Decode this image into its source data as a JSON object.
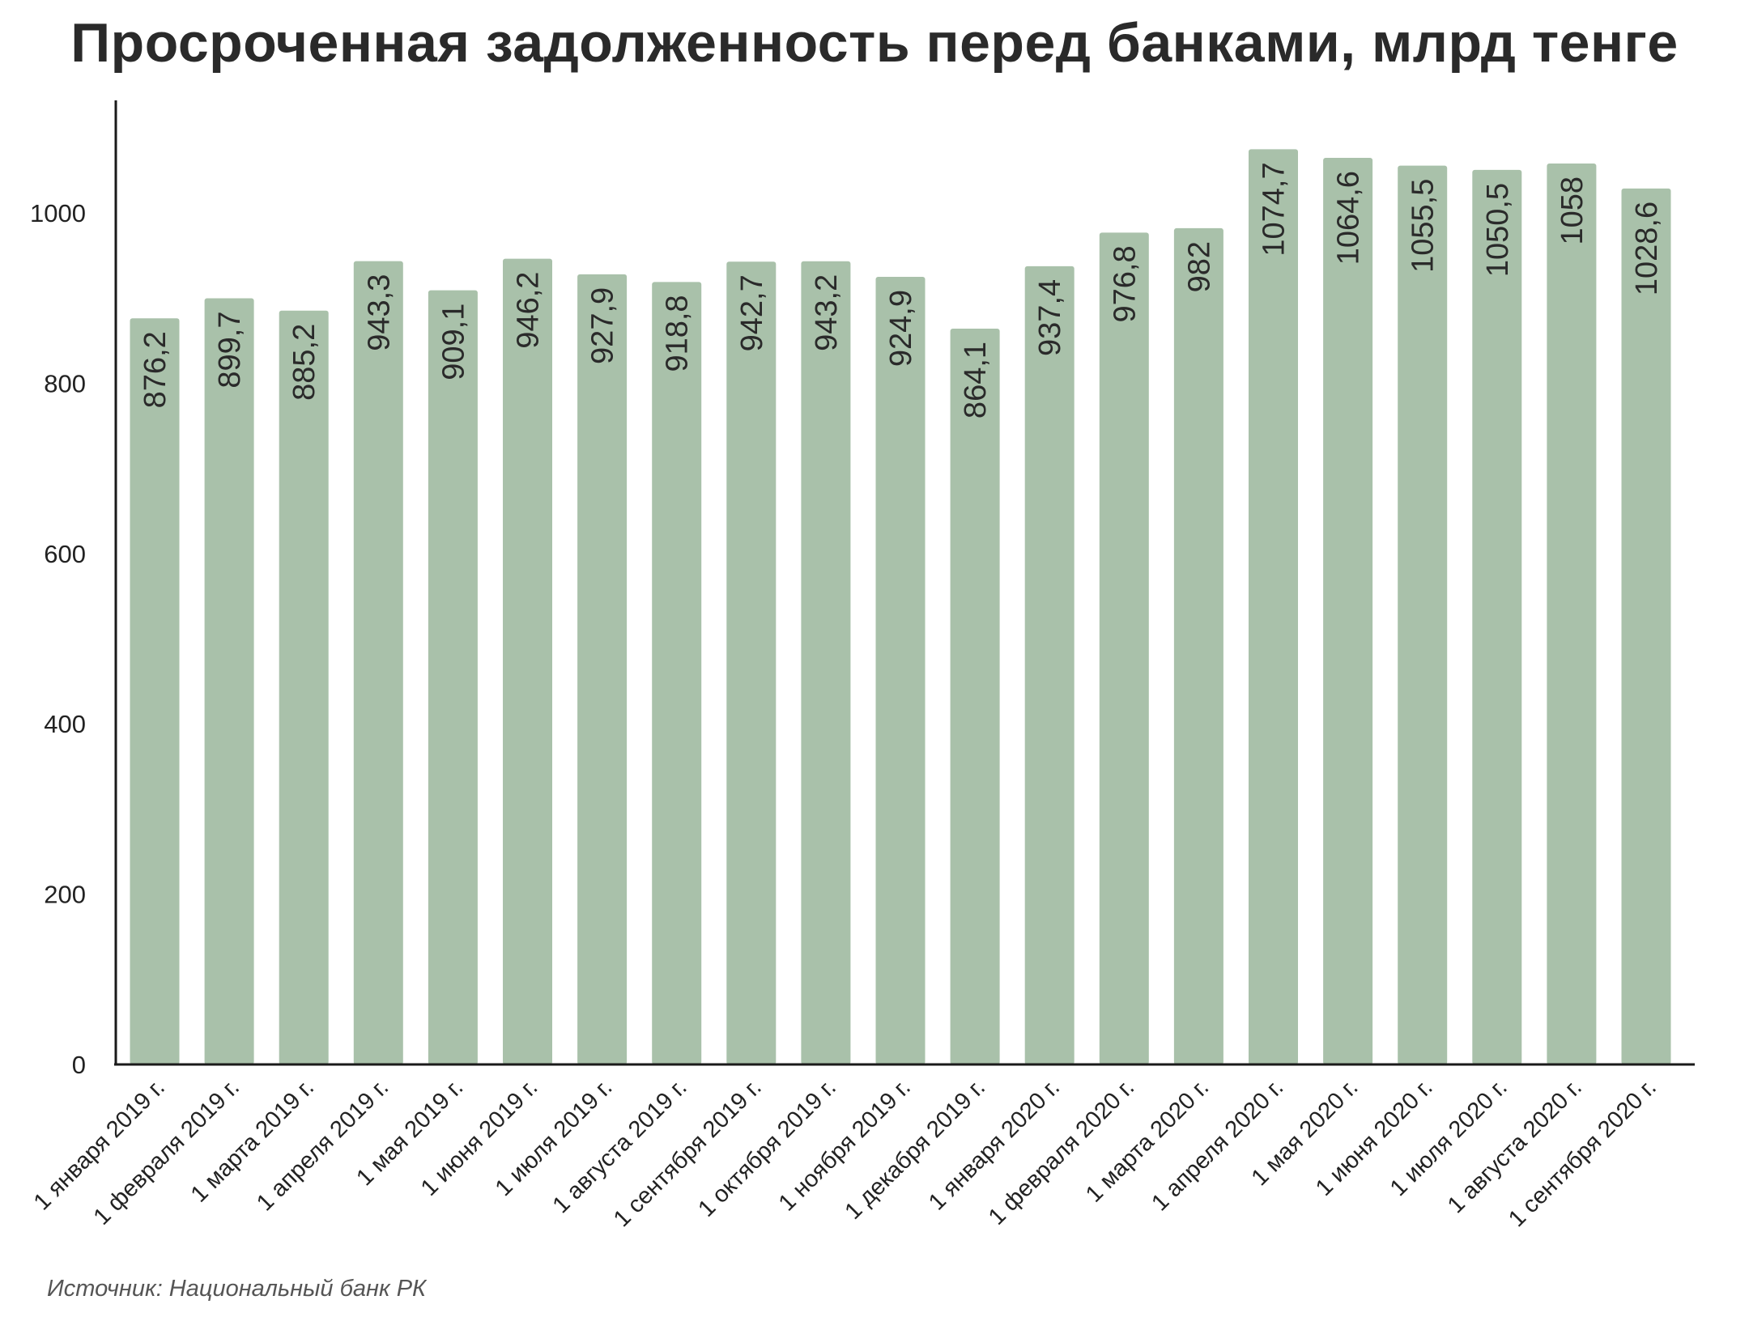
{
  "page": {
    "title": "Просроченная задолженность перед банками, млрд тенге",
    "source": "Источник: Национальный банк РК"
  },
  "colors": {
    "bar": "#a9c1aa",
    "axis": "#1a1a1a",
    "value_label": "#2a2a2a"
  },
  "chart_data": {
    "type": "bar",
    "title": "Просроченная задолженность перед банками, млрд тенге",
    "xlabel": "",
    "ylabel": "",
    "ylim": [
      0,
      1130
    ],
    "yticks": [
      0,
      200,
      400,
      600,
      800,
      1000
    ],
    "grid": false,
    "categories": [
      "1 января 2019 г.",
      "1 февраля 2019 г.",
      "1 марта 2019 г.",
      "1 апреля 2019 г.",
      "1 мая 2019 г.",
      "1 июня 2019 г.",
      "1 июля 2019 г.",
      "1 августа 2019 г.",
      "1 сентября 2019 г.",
      "1 октября 2019 г.",
      "1 ноября 2019 г.",
      "1 декабря 2019 г.",
      "1 января 2020 г.",
      "1 февраля 2020 г.",
      "1 марта 2020 г.",
      "1 апреля 2020 г.",
      "1 мая 2020 г.",
      "1 июня 2020 г.",
      "1 июля 2020 г.",
      "1 августа 2020 г.",
      "1 сентября 2020 г."
    ],
    "values": [
      876.2,
      899.7,
      885.2,
      943.3,
      909.1,
      946.2,
      927.9,
      918.8,
      942.7,
      943.2,
      924.9,
      864.1,
      937.4,
      976.8,
      982,
      1074.7,
      1064.6,
      1055.5,
      1050.5,
      1058,
      1028.6
    ],
    "value_labels": [
      "876,2",
      "899,7",
      "885,2",
      "943,3",
      "909,1",
      "946,2",
      "927,9",
      "918,8",
      "942,7",
      "943,2",
      "924,9",
      "864,1",
      "937,4",
      "976,8",
      "982",
      "1074,7",
      "1064,6",
      "1055,5",
      "1050,5",
      "1058",
      "1028,6"
    ]
  }
}
